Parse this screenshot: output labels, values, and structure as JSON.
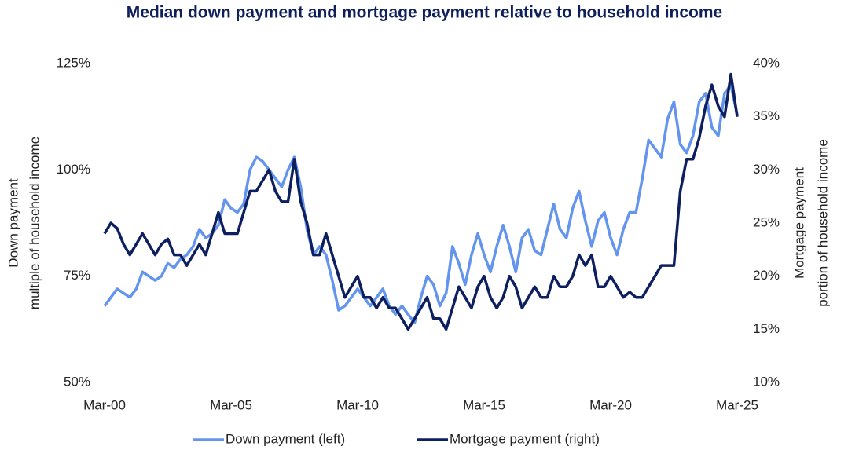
{
  "chart_data": {
    "type": "line",
    "title": "Median down payment and mortgage payment relative to household income",
    "ylabel": [
      "Down payment",
      "multiple of household income"
    ],
    "y2label": [
      "Mortgage payment",
      "portion of household income"
    ],
    "categories": [
      "Mar-00",
      null,
      null,
      null,
      null,
      null,
      null,
      null,
      null,
      null,
      null,
      null,
      null,
      null,
      null,
      null,
      null,
      null,
      null,
      null,
      "Mar-05",
      null,
      null,
      null,
      null,
      null,
      null,
      null,
      null,
      null,
      null,
      null,
      null,
      null,
      null,
      null,
      null,
      null,
      null,
      null,
      "Mar-10",
      null,
      null,
      null,
      null,
      null,
      null,
      null,
      null,
      null,
      null,
      null,
      null,
      null,
      null,
      null,
      null,
      null,
      null,
      null,
      "Mar-15",
      null,
      null,
      null,
      null,
      null,
      null,
      null,
      null,
      null,
      null,
      null,
      null,
      null,
      null,
      null,
      null,
      null,
      null,
      null,
      "Mar-20",
      null,
      null,
      null,
      null,
      null,
      null,
      null,
      null,
      null,
      null,
      null,
      null,
      null,
      null,
      null,
      null,
      null,
      null,
      null,
      "Mar-25"
    ],
    "series": [
      {
        "name": "Down payment (left)",
        "color": "#6394ee",
        "axis": "y",
        "values": [
          68,
          70,
          72,
          71,
          70,
          72,
          76,
          75,
          74,
          75,
          78,
          77,
          79,
          80,
          82,
          86,
          84,
          85,
          87,
          93,
          91,
          90,
          92,
          100,
          103,
          102,
          100,
          98,
          96,
          100,
          103,
          96,
          86,
          80,
          82,
          80,
          74,
          67,
          68,
          70,
          72,
          70,
          68,
          70,
          72,
          68,
          66,
          68,
          66,
          64,
          70,
          75,
          73,
          68,
          71,
          82,
          78,
          73,
          80,
          85,
          80,
          76,
          82,
          87,
          82,
          76,
          84,
          86,
          81,
          80,
          86,
          92,
          86,
          84,
          91,
          95,
          88,
          82,
          88,
          90,
          84,
          80,
          86,
          90,
          90,
          98,
          107,
          105,
          103,
          112,
          116,
          106,
          104,
          108,
          116,
          118,
          110,
          108,
          118,
          120,
          113
        ]
      },
      {
        "name": "Mortgage payment (right)",
        "color": "#0d1f5e",
        "axis": "y2",
        "values": [
          24,
          25,
          24.5,
          23,
          22,
          23,
          24,
          23,
          22,
          23,
          23.5,
          22,
          22,
          21,
          22,
          23,
          22,
          24,
          26,
          24,
          24,
          24,
          26,
          28,
          28,
          29,
          30,
          28,
          27,
          27,
          31,
          27,
          25,
          22,
          22,
          24,
          22,
          20,
          18,
          19,
          20,
          18,
          18,
          17,
          18,
          17,
          17,
          16,
          15,
          16,
          17,
          18,
          16,
          16,
          15,
          17,
          19,
          18,
          17,
          19,
          20,
          18,
          17,
          18,
          20,
          19,
          17,
          18,
          19,
          18,
          18,
          20,
          19,
          19,
          20,
          22,
          21,
          22,
          19,
          19,
          20,
          19,
          18,
          18.5,
          18,
          18,
          19,
          20,
          21,
          21,
          21,
          28,
          31,
          31,
          33,
          36,
          38,
          36,
          35,
          39,
          35
        ]
      }
    ],
    "ylim": [
      50,
      125
    ],
    "yticks": [
      {
        "value": 50,
        "label": "50%"
      },
      {
        "value": 75,
        "label": "75%"
      },
      {
        "value": 100,
        "label": "100%"
      },
      {
        "value": 125,
        "label": "125%"
      }
    ],
    "y2lim": [
      10,
      40
    ],
    "y2ticks": [
      {
        "value": 10,
        "label": "10%"
      },
      {
        "value": 15,
        "label": "15%"
      },
      {
        "value": 20,
        "label": "20%"
      },
      {
        "value": 25,
        "label": "25%"
      },
      {
        "value": 30,
        "label": "30%"
      },
      {
        "value": 35,
        "label": "35%"
      },
      {
        "value": 40,
        "label": "40%"
      }
    ],
    "grid": false,
    "legend": "bottom"
  }
}
